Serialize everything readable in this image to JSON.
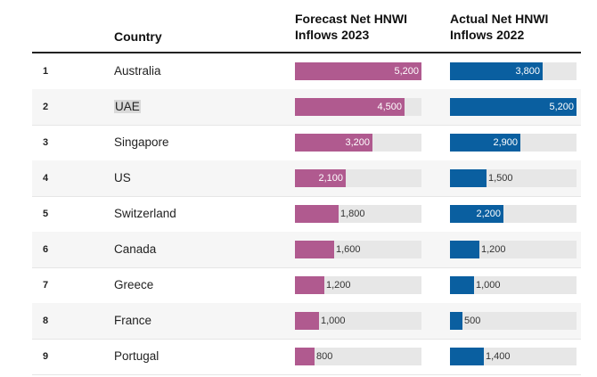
{
  "header": {
    "country": "Country",
    "forecast_line1": "Forecast Net HNWI",
    "forecast_line2": "Inflows 2023",
    "actual_line1": "Actual Net HNWI",
    "actual_line2": "Inflows 2022"
  },
  "colors": {
    "forecast": "#b05a8f",
    "actual": "#0a5fa0",
    "track": "#e7e7e7"
  },
  "chart_data": {
    "type": "table",
    "columns": [
      "",
      "Country",
      "Forecast Net HNWI Inflows 2023",
      "Actual Net HNWI Inflows 2022"
    ],
    "x_max": 5200,
    "rows": [
      {
        "rank": "1",
        "country": "Australia",
        "forecast": 5200,
        "forecast_label": "5,200",
        "actual": 3800,
        "actual_label": "3,800",
        "highlight": false
      },
      {
        "rank": "2",
        "country": "UAE",
        "forecast": 4500,
        "forecast_label": "4,500",
        "actual": 5200,
        "actual_label": "5,200",
        "highlight": true
      },
      {
        "rank": "3",
        "country": "Singapore",
        "forecast": 3200,
        "forecast_label": "3,200",
        "actual": 2900,
        "actual_label": "2,900",
        "highlight": false
      },
      {
        "rank": "4",
        "country": "US",
        "forecast": 2100,
        "forecast_label": "2,100",
        "actual": 1500,
        "actual_label": "1,500",
        "highlight": false
      },
      {
        "rank": "5",
        "country": "Switzerland",
        "forecast": 1800,
        "forecast_label": "1,800",
        "actual": 2200,
        "actual_label": "2,200",
        "highlight": false
      },
      {
        "rank": "6",
        "country": "Canada",
        "forecast": 1600,
        "forecast_label": "1,600",
        "actual": 1200,
        "actual_label": "1,200",
        "highlight": false
      },
      {
        "rank": "7",
        "country": "Greece",
        "forecast": 1200,
        "forecast_label": "1,200",
        "actual": 1000,
        "actual_label": "1,000",
        "highlight": false
      },
      {
        "rank": "8",
        "country": "France",
        "forecast": 1000,
        "forecast_label": "1,000",
        "actual": 500,
        "actual_label": "500",
        "highlight": false
      },
      {
        "rank": "9",
        "country": "Portugal",
        "forecast": 800,
        "forecast_label": "800",
        "actual": 1400,
        "actual_label": "1,400",
        "highlight": false
      }
    ]
  }
}
